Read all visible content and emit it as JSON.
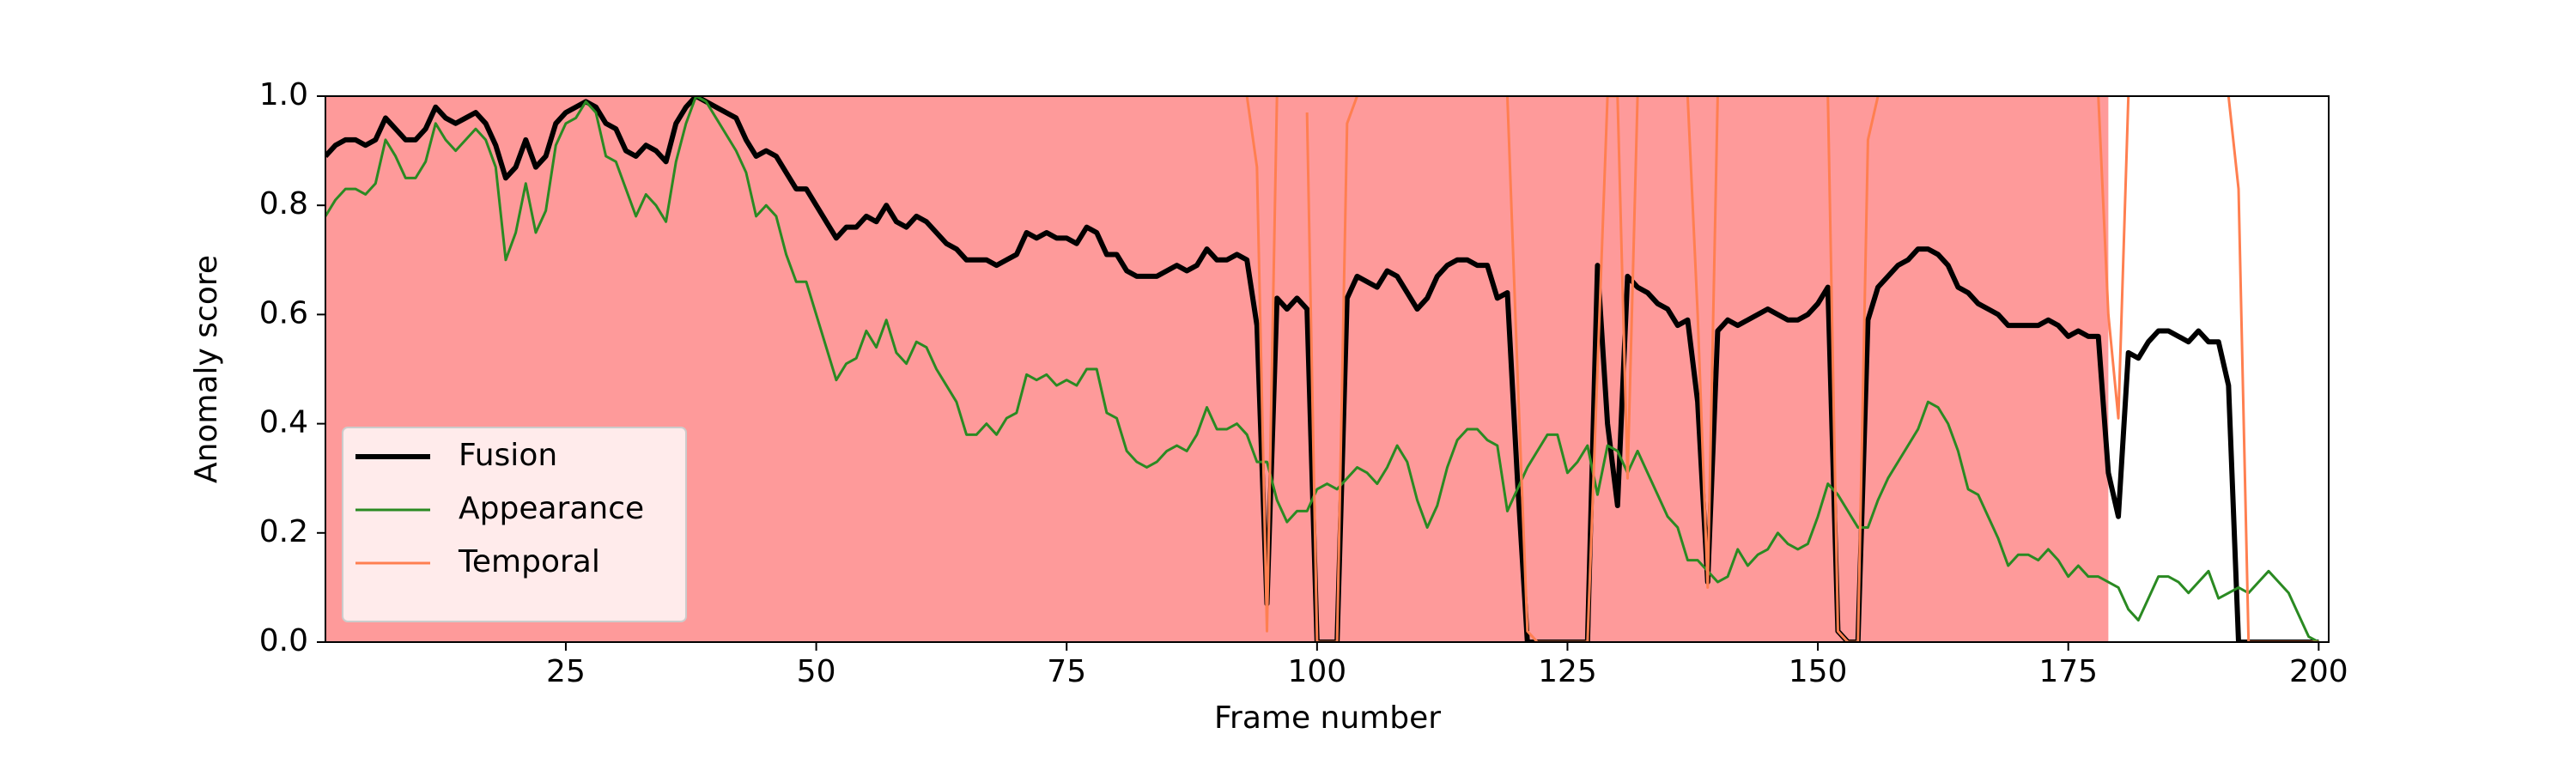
{
  "chart_data": {
    "type": "line",
    "xlabel": "Frame number",
    "ylabel": "Anomaly score",
    "xlim": [
      1,
      201
    ],
    "ylim": [
      0,
      1
    ],
    "xticks": [
      25,
      50,
      75,
      100,
      125,
      150,
      175,
      200
    ],
    "yticks": [
      {
        "value": 0,
        "label": "0.0"
      },
      0.2,
      0.4,
      0.6,
      0.8,
      {
        "value": 1,
        "label": "1.0"
      }
    ],
    "legend": "lower left",
    "shade": {
      "x": [
        1,
        179
      ],
      "color": "#fe9a9a"
    },
    "x": [
      1,
      2,
      3,
      4,
      5,
      6,
      7,
      8,
      9,
      10,
      11,
      12,
      13,
      14,
      15,
      16,
      17,
      18,
      19,
      20,
      21,
      22,
      23,
      24,
      25,
      26,
      27,
      28,
      29,
      30,
      31,
      32,
      33,
      34,
      35,
      36,
      37,
      38,
      39,
      40,
      41,
      42,
      43,
      44,
      45,
      46,
      47,
      48,
      49,
      50,
      51,
      52,
      53,
      54,
      55,
      56,
      57,
      58,
      59,
      60,
      61,
      62,
      63,
      64,
      65,
      66,
      67,
      68,
      69,
      70,
      71,
      72,
      73,
      74,
      75,
      76,
      77,
      78,
      79,
      80,
      81,
      82,
      83,
      84,
      85,
      86,
      87,
      88,
      89,
      90,
      91,
      92,
      93,
      94,
      95,
      96,
      97,
      98,
      99,
      100,
      101,
      102,
      103,
      104,
      105,
      106,
      107,
      108,
      109,
      110,
      111,
      112,
      113,
      114,
      115,
      116,
      117,
      118,
      119,
      120,
      121,
      122,
      123,
      124,
      125,
      126,
      127,
      128,
      129,
      130,
      131,
      132,
      133,
      134,
      135,
      136,
      137,
      138,
      139,
      140,
      141,
      142,
      143,
      144,
      145,
      146,
      147,
      148,
      149,
      150,
      151,
      152,
      153,
      154,
      155,
      156,
      157,
      158,
      159,
      160,
      161,
      162,
      163,
      164,
      165,
      166,
      167,
      168,
      169,
      170,
      171,
      172,
      173,
      174,
      175,
      176,
      177,
      178,
      179,
      180,
      181,
      182,
      183,
      184,
      185,
      186,
      187,
      188,
      189,
      190,
      191,
      192,
      193,
      194,
      195,
      196,
      197,
      198,
      199,
      200
    ],
    "series": [
      {
        "name": "Fusion",
        "color": "#000000",
        "linewidth": 6,
        "values": [
          0.89,
          0.91,
          0.92,
          0.92,
          0.91,
          0.92,
          0.96,
          0.94,
          0.92,
          0.92,
          0.94,
          0.98,
          0.96,
          0.95,
          0.96,
          0.97,
          0.95,
          0.91,
          0.85,
          0.87,
          0.92,
          0.87,
          0.89,
          0.95,
          0.97,
          0.98,
          0.99,
          0.98,
          0.95,
          0.94,
          0.9,
          0.89,
          0.91,
          0.9,
          0.88,
          0.95,
          0.98,
          1.0,
          0.99,
          0.98,
          0.97,
          0.96,
          0.92,
          0.89,
          0.9,
          0.89,
          0.86,
          0.83,
          0.83,
          0.8,
          0.77,
          0.74,
          0.76,
          0.76,
          0.78,
          0.77,
          0.8,
          0.77,
          0.76,
          0.78,
          0.77,
          0.75,
          0.73,
          0.72,
          0.7,
          0.7,
          0.7,
          0.69,
          0.7,
          0.71,
          0.75,
          0.74,
          0.75,
          0.74,
          0.74,
          0.73,
          0.76,
          0.75,
          0.71,
          0.71,
          0.68,
          0.67,
          0.67,
          0.67,
          0.68,
          0.69,
          0.68,
          0.69,
          0.72,
          0.7,
          0.7,
          0.71,
          0.7,
          0.58,
          0.07,
          0.63,
          0.61,
          0.63,
          0.61,
          0.0,
          0.0,
          0.0,
          0.63,
          0.67,
          0.66,
          0.65,
          0.68,
          0.67,
          0.64,
          0.61,
          0.63,
          0.67,
          0.69,
          0.7,
          0.7,
          0.69,
          0.69,
          0.63,
          0.64,
          0.3,
          0.0,
          0.0,
          0.0,
          0.0,
          0.0,
          0.0,
          0.0,
          0.69,
          0.4,
          0.25,
          0.67,
          0.65,
          0.64,
          0.62,
          0.61,
          0.58,
          0.59,
          0.44,
          0.11,
          0.57,
          0.59,
          0.58,
          0.59,
          0.6,
          0.61,
          0.6,
          0.59,
          0.59,
          0.6,
          0.62,
          0.65,
          0.02,
          0.0,
          0.0,
          0.59,
          0.65,
          0.67,
          0.69,
          0.7,
          0.72,
          0.72,
          0.71,
          0.69,
          0.65,
          0.64,
          0.62,
          0.61,
          0.6,
          0.58,
          0.58,
          0.58,
          0.58,
          0.59,
          0.58,
          0.56,
          0.57,
          0.56,
          0.56,
          0.31,
          0.23,
          0.53,
          0.52,
          0.55,
          0.57,
          0.57,
          0.56,
          0.55,
          0.57,
          0.55,
          0.55,
          0.47,
          0.0,
          0.0,
          0.0,
          0.0,
          0.0,
          0.0,
          0.0,
          0.0,
          0.0
        ]
      },
      {
        "name": "Appearance",
        "color": "#2a8a22",
        "linewidth": 3,
        "values": [
          0.78,
          0.81,
          0.83,
          0.83,
          0.82,
          0.84,
          0.92,
          0.89,
          0.85,
          0.85,
          0.88,
          0.95,
          0.92,
          0.9,
          0.92,
          0.94,
          0.92,
          0.87,
          0.7,
          0.75,
          0.84,
          0.75,
          0.79,
          0.91,
          0.95,
          0.96,
          0.99,
          0.97,
          0.89,
          0.88,
          0.83,
          0.78,
          0.82,
          0.8,
          0.77,
          0.88,
          0.95,
          1.0,
          0.99,
          0.96,
          0.93,
          0.9,
          0.86,
          0.78,
          0.8,
          0.78,
          0.71,
          0.66,
          0.66,
          0.6,
          0.54,
          0.48,
          0.51,
          0.52,
          0.57,
          0.54,
          0.59,
          0.53,
          0.51,
          0.55,
          0.54,
          0.5,
          0.47,
          0.44,
          0.38,
          0.38,
          0.4,
          0.38,
          0.41,
          0.42,
          0.49,
          0.48,
          0.49,
          0.47,
          0.48,
          0.47,
          0.5,
          0.5,
          0.42,
          0.41,
          0.35,
          0.33,
          0.32,
          0.33,
          0.35,
          0.36,
          0.35,
          0.38,
          0.43,
          0.39,
          0.39,
          0.4,
          0.38,
          0.33,
          0.33,
          0.26,
          0.22,
          0.24,
          0.24,
          0.28,
          0.29,
          0.28,
          0.3,
          0.32,
          0.31,
          0.29,
          0.32,
          0.36,
          0.33,
          0.26,
          0.21,
          0.25,
          0.32,
          0.37,
          0.39,
          0.39,
          0.37,
          0.36,
          0.24,
          0.28,
          0.32,
          0.35,
          0.38,
          0.38,
          0.31,
          0.33,
          0.36,
          0.27,
          0.36,
          0.35,
          0.31,
          0.35,
          0.31,
          0.27,
          0.23,
          0.21,
          0.15,
          0.15,
          0.13,
          0.11,
          0.12,
          0.17,
          0.14,
          0.16,
          0.17,
          0.2,
          0.18,
          0.17,
          0.18,
          0.23,
          0.29,
          0.27,
          0.24,
          0.21,
          0.21,
          0.26,
          0.3,
          0.33,
          0.36,
          0.39,
          0.44,
          0.43,
          0.4,
          0.35,
          0.28,
          0.27,
          0.23,
          0.19,
          0.14,
          0.16,
          0.16,
          0.15,
          0.17,
          0.15,
          0.12,
          0.14,
          0.12,
          0.12,
          0.11,
          0.1,
          0.06,
          0.04,
          0.08,
          0.12,
          0.12,
          0.11,
          0.09,
          0.11,
          0.13,
          0.08,
          0.09,
          0.1,
          0.09,
          0.11,
          0.13,
          0.11,
          0.09,
          0.05,
          0.01,
          0.0
        ]
      },
      {
        "name": "Temporal",
        "color": "#ff7f50",
        "linewidth": 3,
        "values": [
          null,
          null,
          null,
          null,
          null,
          null,
          null,
          null,
          null,
          null,
          null,
          null,
          null,
          null,
          null,
          null,
          null,
          null,
          null,
          null,
          null,
          null,
          null,
          null,
          null,
          null,
          null,
          null,
          null,
          null,
          null,
          null,
          null,
          null,
          null,
          null,
          null,
          null,
          null,
          null,
          null,
          null,
          null,
          null,
          null,
          null,
          null,
          null,
          null,
          null,
          null,
          null,
          null,
          null,
          null,
          null,
          null,
          null,
          null,
          null,
          null,
          null,
          null,
          null,
          null,
          null,
          null,
          null,
          null,
          null,
          null,
          null,
          null,
          null,
          null,
          null,
          null,
          null,
          null,
          null,
          null,
          null,
          null,
          null,
          null,
          null,
          null,
          null,
          null,
          null,
          null,
          null,
          1.0,
          0.87,
          0.02,
          1.0,
          null,
          null,
          0.97,
          0.0,
          0.0,
          0.0,
          0.95,
          1.0,
          null,
          null,
          null,
          null,
          null,
          null,
          null,
          null,
          null,
          null,
          null,
          null,
          null,
          null,
          1.0,
          0.5,
          0.02,
          0.0,
          0.0,
          0.0,
          0.0,
          0.0,
          0.0,
          0.5,
          1.0,
          1.0,
          0.3,
          1.0,
          null,
          null,
          null,
          null,
          1.0,
          0.6,
          0.1,
          1.0,
          null,
          null,
          null,
          null,
          null,
          null,
          null,
          null,
          null,
          null,
          1.0,
          0.02,
          0.0,
          0.0,
          0.92,
          1.0,
          null,
          null,
          null,
          null,
          null,
          null,
          null,
          null,
          null,
          null,
          null,
          null,
          null,
          null,
          null,
          null,
          null,
          null,
          null,
          null,
          null,
          1.0,
          0.6,
          0.41,
          1.0,
          null,
          null,
          null,
          null,
          null,
          null,
          null,
          null,
          null,
          1.0,
          0.83,
          0.0,
          0.0,
          0.0,
          0.0,
          0.0,
          0.0,
          0.0,
          0.0
        ]
      }
    ]
  }
}
